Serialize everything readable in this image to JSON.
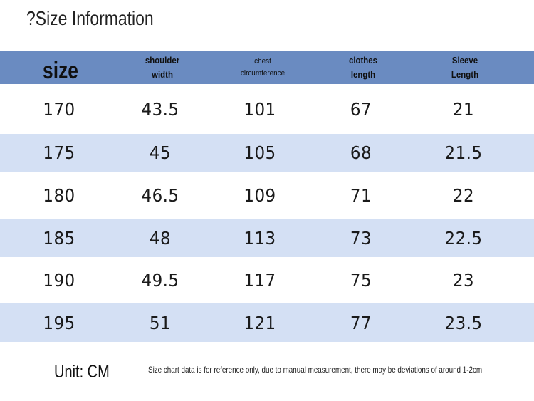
{
  "title": "?Size Information",
  "table": {
    "headers": [
      {
        "lines": [
          "size"
        ]
      },
      {
        "lines": [
          "shoulder",
          "width"
        ]
      },
      {
        "lines": [
          "chest",
          "circumference"
        ]
      },
      {
        "lines": [
          "clothes",
          "length"
        ]
      },
      {
        "lines": [
          "Sleeve",
          "Length"
        ]
      }
    ],
    "rows": [
      [
        "170",
        "43.5",
        "101",
        "67",
        "21"
      ],
      [
        "175",
        "45",
        "105",
        "68",
        "21.5"
      ],
      [
        "180",
        "46.5",
        "109",
        "71",
        "22"
      ],
      [
        "185",
        "48",
        "113",
        "73",
        "22.5"
      ],
      [
        "190",
        "49.5",
        "117",
        "75",
        "23"
      ],
      [
        "195",
        "51",
        "121",
        "77",
        "23.5"
      ]
    ]
  },
  "footer": {
    "unit": "Unit: CM",
    "note": "Size chart data is for reference only, due to manual measurement, there may be deviations of around 1-2cm."
  },
  "colors": {
    "header_bg": "#6a8bc1",
    "row_shade": "#d4e0f4"
  }
}
